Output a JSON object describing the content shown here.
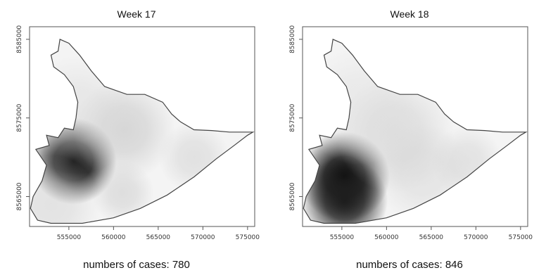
{
  "panels": [
    {
      "title": "Week 17",
      "caption": "numbers of cases: 780",
      "hotspots": [
        {
          "x": 555500,
          "y": 8569500,
          "intensity": 1.0,
          "spread": 2200
        },
        {
          "x": 561200,
          "y": 8573500,
          "intensity": 0.22,
          "spread": 2600
        },
        {
          "x": 561000,
          "y": 8565500,
          "intensity": 0.18,
          "spread": 1600
        },
        {
          "x": 569000,
          "y": 8570000,
          "intensity": 0.16,
          "spread": 1800
        },
        {
          "x": 556000,
          "y": 8575500,
          "intensity": 0.12,
          "spread": 3000
        },
        {
          "x": 553000,
          "y": 8564000,
          "intensity": 0.15,
          "spread": 2500
        }
      ]
    },
    {
      "title": "Week 18",
      "caption": "numbers of cases: 846",
      "hotspots": [
        {
          "x": 555300,
          "y": 8567500,
          "intensity": 1.0,
          "spread": 2300
        },
        {
          "x": 555300,
          "y": 8564500,
          "intensity": 0.9,
          "spread": 2200
        },
        {
          "x": 561000,
          "y": 8573000,
          "intensity": 0.18,
          "spread": 3000
        },
        {
          "x": 564000,
          "y": 8568000,
          "intensity": 0.14,
          "spread": 2500
        },
        {
          "x": 569000,
          "y": 8569500,
          "intensity": 0.15,
          "spread": 1800
        },
        {
          "x": 557000,
          "y": 8576500,
          "intensity": 0.1,
          "spread": 3000
        }
      ]
    }
  ],
  "axes": {
    "x_ticks": [
      555000,
      560000,
      565000,
      570000,
      575000
    ],
    "x_tick_labels": [
      "555000",
      "560000",
      "565000",
      "570000",
      "575000"
    ],
    "y_ticks": [
      8565000,
      8575000,
      8585000
    ],
    "y_tick_labels": [
      "8565000",
      "8575000",
      "8585000"
    ],
    "x_range": [
      550600,
      575800
    ],
    "y_range": [
      8561200,
      8586600
    ]
  },
  "boundary": [
    [
      551500,
      8562000
    ],
    [
      553000,
      8561600
    ],
    [
      556500,
      8561600
    ],
    [
      560000,
      8562300
    ],
    [
      563000,
      8563500
    ],
    [
      566000,
      8565200
    ],
    [
      569000,
      8567500
    ],
    [
      571500,
      8569800
    ],
    [
      573500,
      8571500
    ],
    [
      575000,
      8572800
    ],
    [
      575600,
      8573200
    ],
    [
      573000,
      8573200
    ],
    [
      571000,
      8573400
    ],
    [
      569000,
      8573500
    ],
    [
      567500,
      8574500
    ],
    [
      566500,
      8575500
    ],
    [
      565500,
      8577000
    ],
    [
      563500,
      8578000
    ],
    [
      561500,
      8578000
    ],
    [
      559000,
      8579000
    ],
    [
      557500,
      8581000
    ],
    [
      556200,
      8583000
    ],
    [
      555000,
      8584500
    ],
    [
      554000,
      8585000
    ],
    [
      553800,
      8583500
    ],
    [
      553000,
      8583000
    ],
    [
      553300,
      8581500
    ],
    [
      554500,
      8580500
    ],
    [
      555500,
      8579000
    ],
    [
      556000,
      8577000
    ],
    [
      555800,
      8575000
    ],
    [
      555500,
      8573500
    ],
    [
      554500,
      8573700
    ],
    [
      553800,
      8572500
    ],
    [
      552500,
      8572800
    ],
    [
      552800,
      8571500
    ],
    [
      551300,
      8571000
    ],
    [
      552500,
      8569000
    ],
    [
      552000,
      8567000
    ],
    [
      551000,
      8565000
    ],
    [
      550700,
      8563500
    ],
    [
      551500,
      8562000
    ]
  ],
  "colors": {
    "background": "#ffffff",
    "boundary": "#444444",
    "frame": "#555555"
  }
}
